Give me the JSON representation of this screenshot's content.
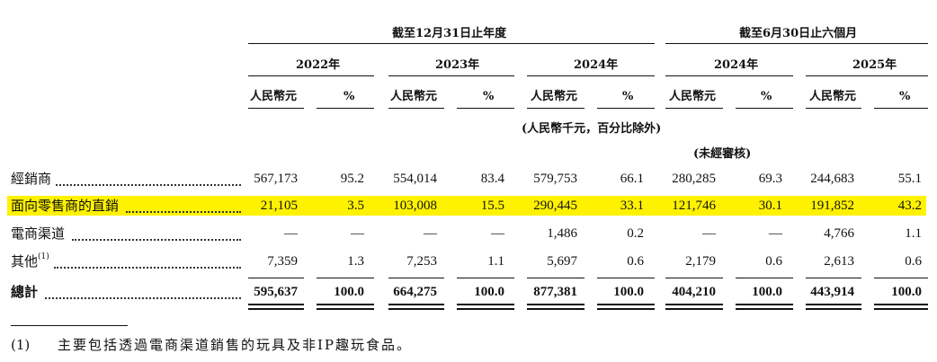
{
  "headers": {
    "year_end": "截至12月31日止年度",
    "six_months": "截至6月30日止六個月",
    "years": [
      "2022年",
      "2023年",
      "2024年",
      "2024年",
      "2025年"
    ],
    "rmb": "人民幣元",
    "pct": "%",
    "unit_note": "(人民幣千元，百分比除外)",
    "unaudited": "(未經審核)"
  },
  "rows": [
    {
      "label": "經銷商",
      "sup": "",
      "values": [
        "567,173",
        "95.2",
        "554,014",
        "83.4",
        "579,753",
        "66.1",
        "280,285",
        "69.3",
        "244,683",
        "55.1"
      ]
    },
    {
      "label": "面向零售商的直銷",
      "sup": "",
      "values": [
        "21,105",
        "3.5",
        "103,008",
        "15.5",
        "290,445",
        "33.1",
        "121,746",
        "30.1",
        "191,852",
        "43.2"
      ]
    },
    {
      "label": "電商渠道",
      "sup": "",
      "values": [
        "—",
        "—",
        "—",
        "—",
        "1,486",
        "0.2",
        "—",
        "—",
        "4,766",
        "1.1"
      ]
    },
    {
      "label": "其他",
      "sup": "(1)",
      "values": [
        "7,359",
        "1.3",
        "7,253",
        "1.1",
        "5,697",
        "0.6",
        "2,179",
        "0.6",
        "2,613",
        "0.6"
      ]
    }
  ],
  "total": {
    "label": "總計",
    "values": [
      "595,637",
      "100.0",
      "664,275",
      "100.0",
      "877,381",
      "100.0",
      "404,210",
      "100.0",
      "443,914",
      "100.0"
    ]
  },
  "footnote": {
    "marker": "(1)",
    "text": "主要包括透過電商渠道銷售的玩具及非IP趣玩食品。"
  },
  "colors": {
    "highlight": "#fff200",
    "text": "#111111"
  }
}
